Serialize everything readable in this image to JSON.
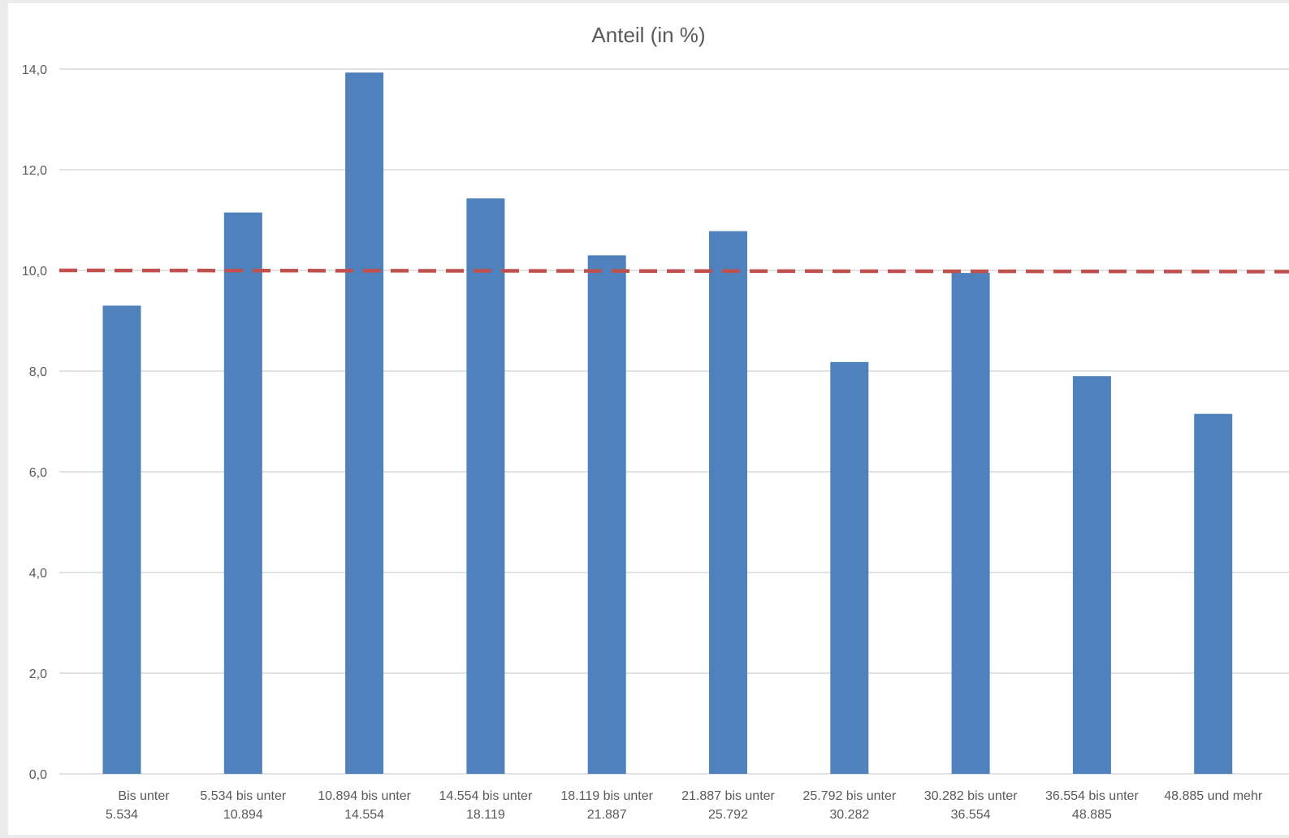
{
  "chart_data": {
    "type": "bar",
    "title": "Anteil (in %)",
    "xlabel": "",
    "ylabel": "",
    "ylim": [
      0,
      14
    ],
    "yticks": [
      "0,0",
      "2,0",
      "4,0",
      "6,0",
      "8,0",
      "10,0",
      "12,0",
      "14,0"
    ],
    "ytick_values": [
      0,
      2,
      4,
      6,
      8,
      10,
      12,
      14
    ],
    "categories": [
      [
        "Bis unter",
        "5.534"
      ],
      [
        "5.534 bis unter",
        "10.894"
      ],
      [
        "10.894 bis unter",
        "14.554"
      ],
      [
        "14.554 bis unter",
        "18.119"
      ],
      [
        "18.119 bis unter",
        "21.887"
      ],
      [
        "21.887 bis unter",
        "25.792"
      ],
      [
        "25.792 bis unter",
        "30.282"
      ],
      [
        "30.282 bis unter",
        "36.554"
      ],
      [
        "36.554 bis unter",
        "48.885"
      ],
      [
        "48.885 und mehr"
      ]
    ],
    "values": [
      9.3,
      11.15,
      13.93,
      11.43,
      10.3,
      10.78,
      8.18,
      9.95,
      7.9,
      7.15
    ],
    "reference_line": {
      "value": 10.0,
      "style": "dashed",
      "color": "#c0504d"
    },
    "bar_color": "#4f81bd",
    "grid": true,
    "legend": "none"
  }
}
